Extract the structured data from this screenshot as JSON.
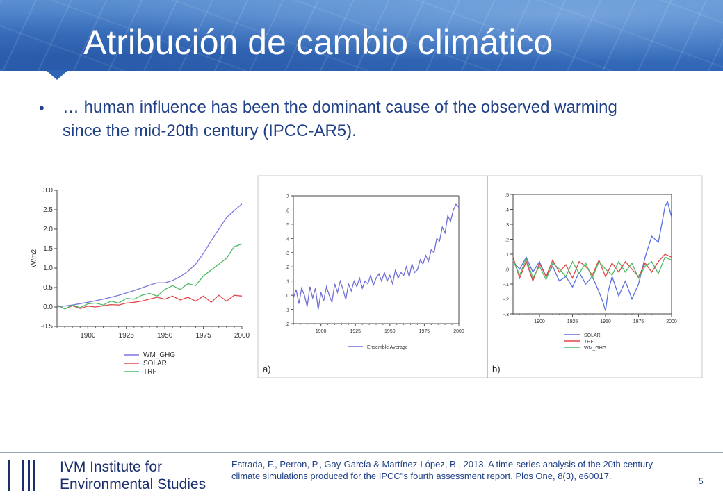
{
  "slide": {
    "title": "Atribución de cambio climático",
    "bullet": "… human influence has been the dominant cause of the observed warming since the mid-20th century (IPCC-AR5).",
    "reference": "Estrada, F., Perron, P., Gay-García & Martínez-López, B., 2013. A time-series analysis of the 20th century climate simulations produced for the IPCC\"s fourth assessment report. Plos One, 8(3), e60017.",
    "page_number": "5",
    "logo": {
      "line1": "IVM Institute for",
      "line2": "Environmental Studies"
    },
    "colors": {
      "title_bar": "#3f76c2",
      "text": "#1f3f86",
      "logo": "#1a2f6b"
    }
  },
  "chart_data": [
    {
      "type": "line",
      "ylabel": "W/m2",
      "ylim": [
        -0.5,
        3.0
      ],
      "xlim": [
        1880,
        2000
      ],
      "xticks": [
        "1900",
        "1925",
        "1950",
        "1975",
        "2000"
      ],
      "yticks": [
        "-0.5",
        "0.0",
        "0.5",
        "1.0",
        "1.5",
        "2.0",
        "2.5",
        "3.0"
      ],
      "legend_position": "bottom-left",
      "series": [
        {
          "name": "WM_GHG",
          "color": "#7b78e0",
          "x": [
            1880,
            1890,
            1900,
            1910,
            1920,
            1930,
            1940,
            1945,
            1950,
            1955,
            1960,
            1965,
            1970,
            1975,
            1980,
            1985,
            1990,
            1995,
            2000
          ],
          "y": [
            0.0,
            0.05,
            0.12,
            0.2,
            0.3,
            0.42,
            0.56,
            0.62,
            0.62,
            0.68,
            0.78,
            0.92,
            1.1,
            1.38,
            1.7,
            2.0,
            2.3,
            2.48,
            2.65
          ]
        },
        {
          "name": "SOLAR",
          "color": "#e0484a",
          "x": [
            1880,
            1885,
            1890,
            1895,
            1900,
            1905,
            1910,
            1915,
            1920,
            1925,
            1930,
            1935,
            1940,
            1945,
            1950,
            1955,
            1960,
            1965,
            1970,
            1975,
            1980,
            1985,
            1990,
            1995,
            2000
          ],
          "y": [
            0.05,
            -0.05,
            0.03,
            -0.04,
            0.02,
            0.0,
            0.03,
            0.06,
            0.05,
            0.1,
            0.12,
            0.15,
            0.2,
            0.25,
            0.2,
            0.28,
            0.18,
            0.25,
            0.15,
            0.28,
            0.12,
            0.3,
            0.15,
            0.3,
            0.28
          ]
        },
        {
          "name": "TRF",
          "color": "#4dba62",
          "x": [
            1880,
            1885,
            1890,
            1895,
            1900,
            1905,
            1910,
            1915,
            1920,
            1925,
            1930,
            1935,
            1940,
            1945,
            1950,
            1955,
            1960,
            1965,
            1970,
            1975,
            1980,
            1985,
            1990,
            1995,
            2000
          ],
          "y": [
            0.05,
            -0.05,
            0.05,
            -0.02,
            0.08,
            0.1,
            0.05,
            0.15,
            0.1,
            0.22,
            0.2,
            0.3,
            0.35,
            0.28,
            0.45,
            0.55,
            0.45,
            0.6,
            0.55,
            0.8,
            0.95,
            1.1,
            1.25,
            1.55,
            1.62
          ]
        }
      ]
    },
    {
      "type": "line",
      "panel_label": "a)",
      "ylim": [
        -0.2,
        0.7
      ],
      "xlim": [
        1880,
        2000
      ],
      "xticks": [
        "1900",
        "1925",
        "1950",
        "1975",
        "2000"
      ],
      "yticks": [
        "-.2",
        "-.1",
        ".0",
        ".1",
        ".2",
        ".3",
        ".4",
        ".5",
        ".6",
        ".7"
      ],
      "legend_position": "bottom",
      "series": [
        {
          "name": "Ensemble Average",
          "color": "#6f6fd8",
          "x": [
            1880,
            1882,
            1884,
            1886,
            1888,
            1890,
            1892,
            1894,
            1896,
            1898,
            1900,
            1902,
            1904,
            1906,
            1908,
            1910,
            1912,
            1914,
            1916,
            1918,
            1920,
            1922,
            1924,
            1926,
            1928,
            1930,
            1932,
            1934,
            1936,
            1938,
            1940,
            1942,
            1944,
            1946,
            1948,
            1950,
            1952,
            1954,
            1956,
            1958,
            1960,
            1962,
            1964,
            1966,
            1968,
            1970,
            1972,
            1974,
            1976,
            1978,
            1980,
            1982,
            1984,
            1986,
            1988,
            1990,
            1992,
            1994,
            1996,
            1998,
            2000
          ],
          "y": [
            -0.02,
            0.04,
            -0.06,
            0.05,
            0.0,
            -0.08,
            0.06,
            -0.02,
            0.05,
            -0.1,
            0.02,
            -0.04,
            0.06,
            0.0,
            -0.05,
            0.08,
            0.02,
            0.1,
            0.04,
            -0.03,
            0.08,
            0.03,
            0.1,
            0.06,
            0.12,
            0.05,
            0.1,
            0.08,
            0.14,
            0.07,
            0.12,
            0.15,
            0.1,
            0.16,
            0.1,
            0.14,
            0.08,
            0.18,
            0.12,
            0.16,
            0.14,
            0.2,
            0.13,
            0.22,
            0.16,
            0.18,
            0.25,
            0.22,
            0.28,
            0.24,
            0.32,
            0.3,
            0.4,
            0.38,
            0.48,
            0.44,
            0.56,
            0.52,
            0.6,
            0.64,
            0.62
          ]
        }
      ]
    },
    {
      "type": "line",
      "panel_label": "b)",
      "ylim": [
        -0.3,
        0.5
      ],
      "xlim": [
        1880,
        2000
      ],
      "xticks": [
        "1900",
        "1925",
        "1950",
        "1975",
        "2000"
      ],
      "yticks": [
        "-.3",
        "-.2",
        "-.1",
        ".0",
        ".1",
        ".2",
        ".3",
        ".4",
        ".5"
      ],
      "legend_position": "bottom",
      "series": [
        {
          "name": "SOLAR",
          "color": "#5a6fe0",
          "x": [
            1880,
            1885,
            1890,
            1895,
            1900,
            1905,
            1910,
            1915,
            1920,
            1925,
            1930,
            1935,
            1940,
            1945,
            1948,
            1950,
            1952,
            1955,
            1960,
            1965,
            1970,
            1975,
            1980,
            1985,
            1990,
            1993,
            1995,
            1997,
            2000
          ],
          "y": [
            0.05,
            0.0,
            0.08,
            -0.02,
            0.05,
            -0.05,
            0.02,
            -0.08,
            -0.05,
            -0.12,
            -0.02,
            -0.1,
            -0.05,
            -0.15,
            -0.22,
            -0.28,
            -0.15,
            -0.05,
            -0.18,
            -0.08,
            -0.2,
            -0.1,
            0.08,
            0.22,
            0.18,
            0.32,
            0.42,
            0.45,
            0.35
          ]
        },
        {
          "name": "TRF",
          "color": "#e0484a",
          "x": [
            1880,
            1885,
            1890,
            1895,
            1900,
            1905,
            1910,
            1915,
            1920,
            1925,
            1930,
            1935,
            1940,
            1945,
            1950,
            1955,
            1960,
            1965,
            1970,
            1975,
            1980,
            1985,
            1990,
            1995,
            2000
          ],
          "y": [
            0.08,
            -0.06,
            0.05,
            -0.08,
            0.04,
            -0.05,
            0.06,
            -0.02,
            0.03,
            -0.06,
            0.05,
            0.02,
            -0.04,
            0.06,
            -0.05,
            0.04,
            -0.02,
            0.05,
            0.0,
            -0.05,
            0.04,
            -0.02,
            0.05,
            0.1,
            0.08
          ]
        },
        {
          "name": "WM_GHG",
          "color": "#4dba62",
          "x": [
            1880,
            1885,
            1890,
            1895,
            1900,
            1905,
            1910,
            1915,
            1920,
            1925,
            1930,
            1935,
            1940,
            1945,
            1950,
            1955,
            1960,
            1965,
            1970,
            1975,
            1980,
            1985,
            1990,
            1995,
            2000
          ],
          "y": [
            0.06,
            -0.04,
            0.07,
            -0.06,
            0.02,
            -0.07,
            0.04,
            0.0,
            -0.05,
            0.05,
            -0.03,
            0.04,
            -0.06,
            0.05,
            0.0,
            -0.04,
            0.05,
            -0.02,
            0.04,
            -0.06,
            0.02,
            0.05,
            -0.03,
            0.08,
            0.06
          ]
        }
      ]
    }
  ]
}
